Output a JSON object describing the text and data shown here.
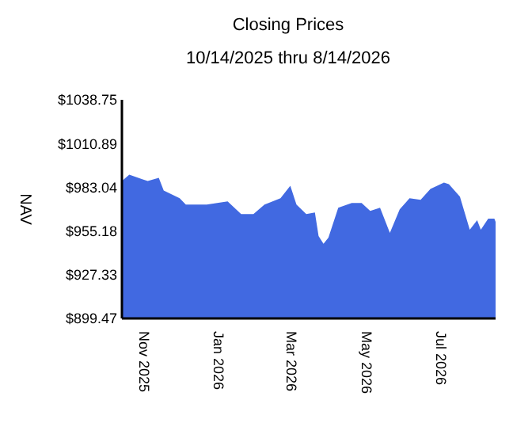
{
  "chart_data": {
    "type": "area",
    "title": "Closing Prices",
    "subtitle": "10/14/2025 thru 8/14/2026",
    "ylabel": "NAV",
    "x": [
      "2025-10-14",
      "2025-10-20",
      "2025-10-31",
      "2025-11-04",
      "2025-11-13",
      "2025-11-17",
      "2025-11-30",
      "2025-12-05",
      "2025-12-22",
      "2026-01-08",
      "2026-01-19",
      "2026-01-29",
      "2026-02-07",
      "2026-02-20",
      "2026-02-28",
      "2026-03-05",
      "2026-03-13",
      "2026-03-20",
      "2026-03-23",
      "2026-03-27",
      "2026-03-31",
      "2026-04-08",
      "2026-04-19",
      "2026-04-27",
      "2026-05-04",
      "2026-05-12",
      "2026-05-20",
      "2026-05-28",
      "2026-06-05",
      "2026-06-14",
      "2026-06-22",
      "2026-07-03",
      "2026-07-07",
      "2026-07-16",
      "2026-07-24",
      "2026-07-30",
      "2026-08-02",
      "2026-08-08",
      "2026-08-13",
      "2026-08-14"
    ],
    "series": [
      {
        "color": "#4169e1",
        "values": [
          987,
          991,
          988,
          987,
          989,
          981,
          976,
          972,
          972,
          974,
          966,
          966,
          972,
          976,
          984,
          972,
          966,
          967,
          952,
          947,
          951,
          970,
          973,
          973,
          968,
          970,
          954,
          969,
          976,
          975,
          982,
          986,
          985,
          977,
          956,
          962,
          956,
          963,
          963,
          961
        ]
      }
    ],
    "xlim": [
      "2025-10-14",
      "2026-08-14"
    ],
    "xticks": [
      {
        "value": "2025-11-01",
        "label": "Nov 2025"
      },
      {
        "value": "2026-01-01",
        "label": "Jan 2026"
      },
      {
        "value": "2026-03-01",
        "label": "Mar 2026"
      },
      {
        "value": "2026-05-01",
        "label": "May 2026"
      },
      {
        "value": "2026-07-01",
        "label": "Jul 2026"
      }
    ],
    "ylim": [
      899.47,
      1038.75
    ],
    "yticks": [
      {
        "value": 899.47,
        "label": "$899.47"
      },
      {
        "value": 927.33,
        "label": "$927.33"
      },
      {
        "value": 955.18,
        "label": "$955.18"
      },
      {
        "value": 983.04,
        "label": "$983.04"
      },
      {
        "value": 1010.89,
        "label": "$1010.89"
      },
      {
        "value": 1038.75,
        "label": "$1038.75"
      }
    ],
    "tick_labels": "xy"
  }
}
